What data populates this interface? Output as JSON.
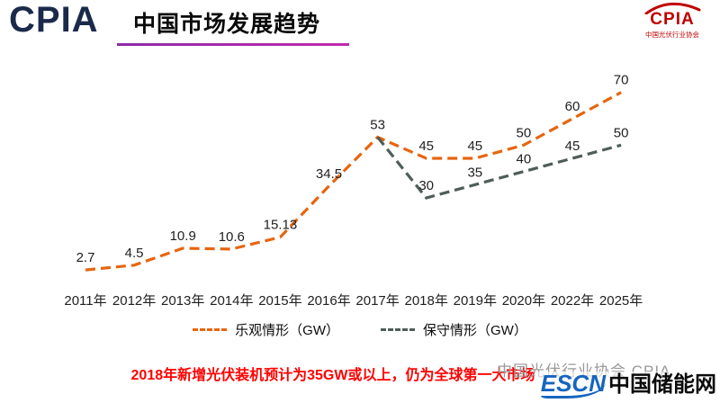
{
  "header": {
    "logo": "CPIA",
    "title": "中国市场发展趋势",
    "org_logo": {
      "text": "CPIA",
      "subtitle": "中国光伏行业协会"
    }
  },
  "chart_data": {
    "type": "line",
    "title": "",
    "xlabel": "",
    "ylabel": "",
    "categories": [
      "2011年",
      "2012年",
      "2013年",
      "2014年",
      "2015年",
      "2016年",
      "2017年",
      "2018年",
      "2019年",
      "2020年",
      "2022年",
      "2025年"
    ],
    "series": [
      {
        "name": "乐观情形（GW）",
        "color": "#E7650F",
        "style": "dashed",
        "values": [
          2.7,
          4.5,
          10.9,
          10.6,
          15.13,
          34.5,
          53,
          45,
          45,
          50,
          60,
          70
        ],
        "labels_from": 0
      },
      {
        "name": "保守情形（GW）",
        "color": "#4E5D58",
        "style": "dashed",
        "values": [
          null,
          null,
          null,
          null,
          null,
          null,
          53,
          30,
          35,
          40,
          45,
          50
        ],
        "labels_from": 7
      }
    ],
    "ylim": [
      0,
      75
    ],
    "grid": false,
    "legend_position": "bottom"
  },
  "legend": {
    "items": [
      {
        "label": "乐观情形（GW）",
        "color": "#E7650F"
      },
      {
        "label": "保守情形（GW）",
        "color": "#4E5D58"
      }
    ]
  },
  "footer": {
    "note": "2018年新增光伏装机预计为35GW或以上，仍为全球第一大市场",
    "watermark": "中国光伏行业协会 CPIA",
    "escn": {
      "en": "ESCN",
      "cn": "中国储能网"
    }
  }
}
